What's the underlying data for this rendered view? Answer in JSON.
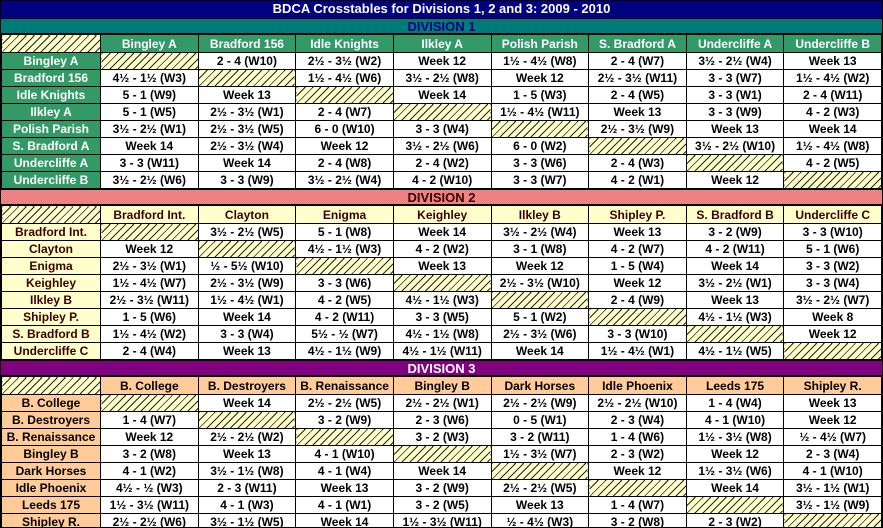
{
  "title": "BDCA Crosstables for Divisions 1, 2 and 3: 2009 - 2010",
  "colors": {
    "title_bg": "#000080",
    "title_fg": "#FFFFFF",
    "cell_bg": "#FFFFFF",
    "cell_fg": "#000000",
    "grid": "#000000",
    "hatch_bg": "#FFFFCC",
    "division1": {
      "banner_bg": "#008080",
      "banner_fg": "#000080",
      "header_bg": "#339966",
      "header_fg": "#FFFFFF"
    },
    "division2": {
      "banner_bg": "#FA8A8A",
      "banner_fg": "#3B0000",
      "header_bg": "#FFFFCC",
      "header_fg": "#3B0000"
    },
    "division3": {
      "banner_bg": "#800080",
      "banner_fg": "#FFFFFF",
      "header_bg": "#FFCC99",
      "header_fg": "#000000"
    }
  },
  "divisions": [
    {
      "name": "DIVISION 1",
      "teams": [
        "Bingley A",
        "Bradford 156",
        "Idle Knights",
        "Ilkley A",
        "Polish Parish",
        "S. Bradford A",
        "Undercliffe A",
        "Undercliffe B"
      ],
      "rows": [
        {
          "team": "Bingley A",
          "cells": [
            null,
            "2 - 4 (W10)",
            "2½ - 3½ (W2)",
            "Week 12",
            "1½ - 4½ (W8)",
            "2 - 4 (W7)",
            "3½ - 2½ (W4)",
            "Week 13"
          ]
        },
        {
          "team": "Bradford 156",
          "cells": [
            "4½ - 1½ (W3)",
            null,
            "1½ - 4½ (W6)",
            "3½ - 2½ (W8)",
            "Week 12",
            "2½ - 3½ (W11)",
            "3 - 3 (W7)",
            "1½ - 4½ (W2)"
          ]
        },
        {
          "team": "Idle Knights",
          "cells": [
            "5 - 1 (W9)",
            "Week 13",
            null,
            "Week 14",
            "1 - 5 (W3)",
            "2 - 4 (W5)",
            "3 - 3 (W1)",
            "2 - 4 (W11)"
          ]
        },
        {
          "team": "Ilkley A",
          "cells": [
            "5 - 1 (W5)",
            "2½ - 3½ (W1)",
            "2 - 4 (W7)",
            null,
            "1½ - 4½ (W11)",
            "Week 13",
            "3 - 3 (W9)",
            "4 - 2 (W3)"
          ]
        },
        {
          "team": "Polish Parish",
          "cells": [
            "3½ - 2½ (W1)",
            "2½ - 3½ (W5)",
            "6 - 0 (W10)",
            "3 - 3 (W4)",
            null,
            "2½ - 3½ (W9)",
            "Week 13",
            "Week 14"
          ]
        },
        {
          "team": "S. Bradford A",
          "cells": [
            "Week 14",
            "2½ - 3½ (W4)",
            "Week 12",
            "3½ - 2½ (W6)",
            "6 - 0 (W2)",
            null,
            "3½ - 2½ (W10)",
            "1½ - 4½ (W8)"
          ]
        },
        {
          "team": "Undercliffe A",
          "cells": [
            "3 - 3 (W11)",
            "Week 14",
            "2 - 4 (W8)",
            "2 - 4 (W2)",
            "3 - 3 (W6)",
            "2 - 4 (W3)",
            null,
            "4 - 2 (W5)"
          ]
        },
        {
          "team": "Undercliffe B",
          "cells": [
            "3½ - 2½ (W6)",
            "3 - 3 (W9)",
            "3½ - 2½ (W4)",
            "4 - 2 (W10)",
            "3 - 3 (W7)",
            "4 - 2 (W1)",
            "Week 12",
            null
          ]
        }
      ]
    },
    {
      "name": "DIVISION 2",
      "teams": [
        "Bradford Int.",
        "Clayton",
        "Enigma",
        "Keighley",
        "Ilkley B",
        "Shipley P.",
        "S. Bradford B",
        "Undercliffe C"
      ],
      "rows": [
        {
          "team": "Bradford Int.",
          "cells": [
            null,
            "3½ - 2½ (W5)",
            "5 - 1 (W8)",
            "Week 14",
            "3½ - 2½ (W4)",
            "Week 13",
            "3 - 2 (W9)",
            "3 - 3 (W10)"
          ]
        },
        {
          "team": "Clayton",
          "cells": [
            "Week 12",
            null,
            "4½ - 1½ (W3)",
            "4 - 2 (W2)",
            "3 - 1 (W8)",
            "4 - 2 (W7)",
            "4 - 2 (W11)",
            "5 - 1 (W6)"
          ]
        },
        {
          "team": "Enigma",
          "cells": [
            "2½ - 3½ (W1)",
            "½ - 5½ (W10)",
            null,
            "Week 13",
            "Week 12",
            "1 - 5 (W4)",
            "Week 14",
            "3 - 3 (W2)"
          ]
        },
        {
          "team": "Keighley",
          "cells": [
            "1½ - 4½ (W7)",
            "2½ - 3½ (W9)",
            "3 - 3 (W6)",
            null,
            "2½ - 3½ (W10)",
            "Week 12",
            "3½ - 2½ (W1)",
            "3 - 3 (W4)"
          ]
        },
        {
          "team": "Ilkley B",
          "cells": [
            "2½ - 3½ (W11)",
            "1½ - 4½ (W1)",
            "4 - 2 (W5)",
            "4½ - 1½ (W3)",
            null,
            "2 - 4 (W9)",
            "Week 13",
            "3½ - 2½ (W7)"
          ]
        },
        {
          "team": "Shipley P.",
          "cells": [
            "1 - 5 (W6)",
            "Week 14",
            "4 - 2 (W11)",
            "3 - 3 (W5)",
            "5 - 1 (W2)",
            null,
            "4½ - 1½ (W3)",
            "Week 8"
          ]
        },
        {
          "team": "S. Bradford B",
          "cells": [
            "1½ - 4½ (W2)",
            "3 - 3 (W4)",
            "5½ - ½ (W7)",
            "4½ - 1½ (W8)",
            "2½ - 3½ (W6)",
            "3 - 3 (W10)",
            null,
            "Week 12"
          ]
        },
        {
          "team": "Undercliffe C",
          "cells": [
            "2 - 4 (W4)",
            "Week 13",
            "4½ - 1½ (W9)",
            "4½ - 1½ (W11)",
            "Week 14",
            "1½ - 4½ (W1)",
            "4½ - 1½ (W5)",
            null
          ]
        }
      ]
    },
    {
      "name": "DIVISION 3",
      "teams": [
        "B. College",
        "B. Destroyers",
        "B. Renaissance",
        "Bingley B",
        "Dark Horses",
        "Idle Phoenix",
        "Leeds 175",
        "Shipley R."
      ],
      "rows": [
        {
          "team": "B. College",
          "cells": [
            null,
            "Week 14",
            "2½ - 2½ (W5)",
            "2½ - 2½ (W1)",
            "2½ - 2½ (W9)",
            "2½ - 2½ (W10)",
            "1 - 4 (W4)",
            "Week 13"
          ]
        },
        {
          "team": "B. Destroyers",
          "cells": [
            "1 - 4 (W7)",
            null,
            "3 - 2 (W9)",
            "2 - 3 (W6)",
            "0 - 5 (W1)",
            "2 - 3 (W4)",
            "4 - 1 (W10)",
            "Week 12"
          ]
        },
        {
          "team": "B. Renaissance",
          "cells": [
            "Week 12",
            "2½ - 2½ (W2)",
            null,
            "3 - 2 (W3)",
            "3 - 2 (W11)",
            "1 - 4 (W6)",
            "1½ - 3½ (W8)",
            "½ - 4½ (W7)"
          ]
        },
        {
          "team": "Bingley B",
          "cells": [
            "3 - 2 (W8)",
            "Week 13",
            "4 - 1 (W10)",
            null,
            "1½ - 3½ (W7)",
            "2 - 3 (W2)",
            "Week 12",
            "2 - 3 (W4)"
          ]
        },
        {
          "team": "Dark Horses",
          "cells": [
            "4 - 1 (W2)",
            "3½ - 1½ (W8)",
            "4 - 1 (W4)",
            "Week 14",
            null,
            "Week 12",
            "1½ - 3½ (W6)",
            "4 - 1 (W10)"
          ]
        },
        {
          "team": "Idle Phoenix",
          "cells": [
            "4½ - ½ (W3)",
            "2 - 3 (W11)",
            "Week 13",
            "3 - 2 (W9)",
            "2½ - 2½ (W5)",
            null,
            "Week 14",
            "3½ - 1½ (W1)"
          ]
        },
        {
          "team": "Leeds 175",
          "cells": [
            "1½ - 3½ (W11)",
            "4 - 1 (W3)",
            "4 - 1 (W1)",
            "3 - 2 (W5)",
            "Week 13",
            "1 - 4 (W7)",
            null,
            "3½ - 1½ (W9)"
          ]
        },
        {
          "team": "Shipley R.",
          "cells": [
            "2½ - 2½ (W6)",
            "3½ - 1½ (W5)",
            "Week 14",
            "1½ - 3½ (W11)",
            "½ - 4½ (W3)",
            "3 - 2 (W8)",
            "2 - 3 (W2)",
            null
          ]
        }
      ]
    }
  ]
}
